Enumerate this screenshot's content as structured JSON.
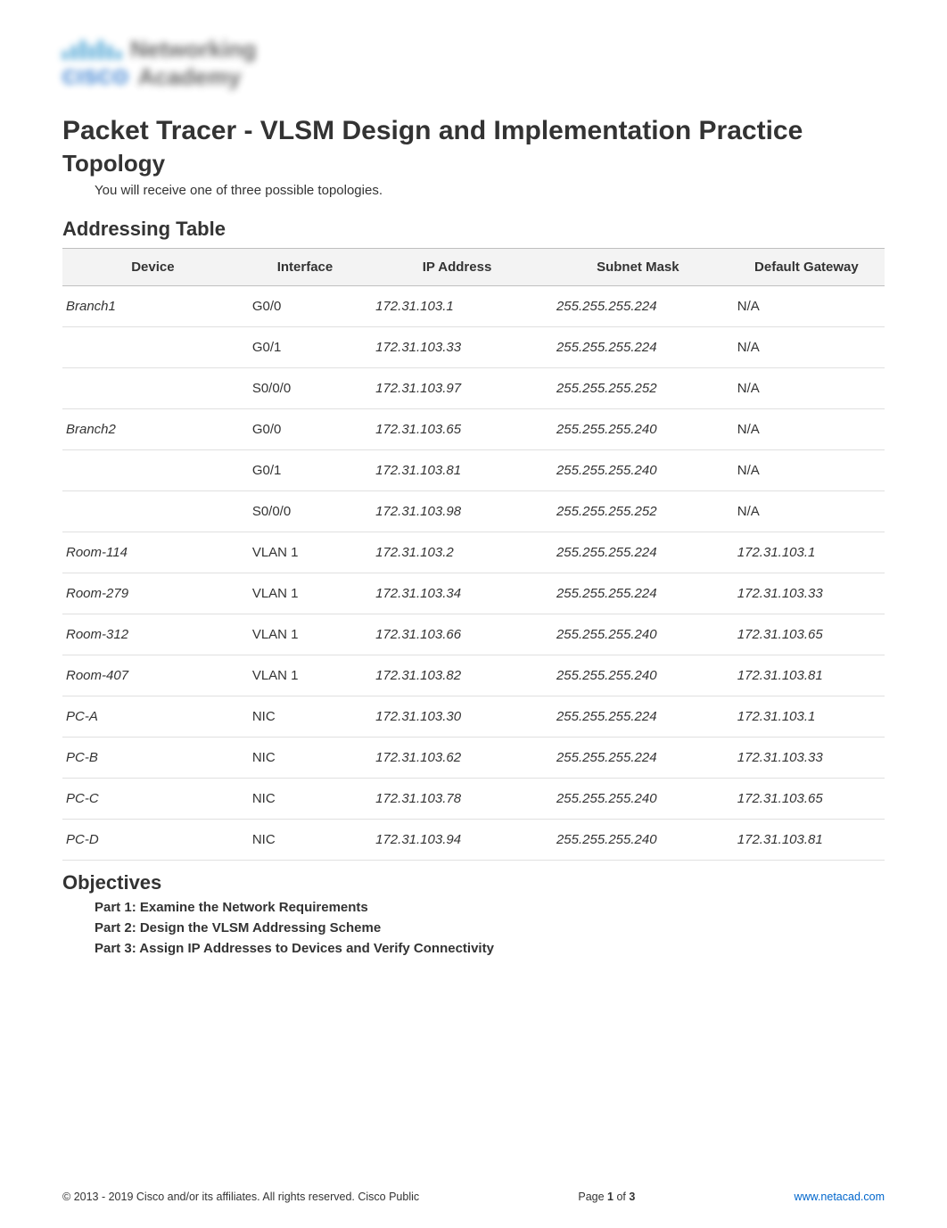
{
  "logo": {
    "word1": "Networking",
    "brand": "CISCO",
    "word2": "Academy"
  },
  "title_main": "Packet Tracer - VLSM Design and Implementation Practice",
  "topology": {
    "heading": "Topology",
    "note": "You will receive one of three possible topologies."
  },
  "addressing": {
    "heading": "Addressing Table",
    "columns": [
      "Device",
      "Interface",
      "IP Address",
      "Subnet Mask",
      "Default Gateway"
    ],
    "rows": [
      {
        "device": "Branch1",
        "iface": "G0/0",
        "ip": "172.31.103.1",
        "mask": "255.255.255.224",
        "gw": "N/A",
        "gw_italic": false
      },
      {
        "device": "",
        "iface": "G0/1",
        "ip": "172.31.103.33",
        "mask": "255.255.255.224",
        "gw": "N/A",
        "gw_italic": false
      },
      {
        "device": "",
        "iface": "S0/0/0",
        "ip": "172.31.103.97",
        "mask": "255.255.255.252",
        "gw": "N/A",
        "gw_italic": false
      },
      {
        "device": "Branch2",
        "iface": "G0/0",
        "ip": "172.31.103.65",
        "mask": "255.255.255.240",
        "gw": "N/A",
        "gw_italic": false
      },
      {
        "device": "",
        "iface": "G0/1",
        "ip": "172.31.103.81",
        "mask": "255.255.255.240",
        "gw": "N/A",
        "gw_italic": false
      },
      {
        "device": "",
        "iface": "S0/0/0",
        "ip": "172.31.103.98",
        "mask": "255.255.255.252",
        "gw": "N/A",
        "gw_italic": false
      },
      {
        "device": "Room-114",
        "iface": "VLAN 1",
        "ip": "172.31.103.2",
        "mask": "255.255.255.224",
        "gw": "172.31.103.1",
        "gw_italic": true
      },
      {
        "device": "Room-279",
        "iface": "VLAN 1",
        "ip": "172.31.103.34",
        "mask": "255.255.255.224",
        "gw": "172.31.103.33",
        "gw_italic": true
      },
      {
        "device": "Room-312",
        "iface": "VLAN 1",
        "ip": "172.31.103.66",
        "mask": "255.255.255.240",
        "gw": "172.31.103.65",
        "gw_italic": true
      },
      {
        "device": "Room-407",
        "iface": "VLAN 1",
        "ip": "172.31.103.82",
        "mask": "255.255.255.240",
        "gw": "172.31.103.81",
        "gw_italic": true
      },
      {
        "device": "PC-A",
        "iface": "NIC",
        "ip": "172.31.103.30",
        "mask": "255.255.255.224",
        "gw": "172.31.103.1",
        "gw_italic": true
      },
      {
        "device": "PC-B",
        "iface": "NIC",
        "ip": "172.31.103.62",
        "mask": "255.255.255.224",
        "gw": "172.31.103.33",
        "gw_italic": true
      },
      {
        "device": "PC-C",
        "iface": "NIC",
        "ip": "172.31.103.78",
        "mask": "255.255.255.240",
        "gw": "172.31.103.65",
        "gw_italic": true
      },
      {
        "device": "PC-D",
        "iface": "NIC",
        "ip": "172.31.103.94",
        "mask": "255.255.255.240",
        "gw": "172.31.103.81",
        "gw_italic": true
      }
    ]
  },
  "objectives": {
    "heading": "Objectives",
    "items": [
      "Part 1: Examine the Network Requirements",
      "Part 2: Design the VLSM Addressing Scheme",
      "Part 3: Assign IP Addresses to Devices and Verify Connectivity"
    ]
  },
  "footer": {
    "copyright": "2013 - 2019 Cisco and/or its affiliates. All rights reserved. Cisco Public",
    "page_prefix": "Page ",
    "page_current": "1",
    "page_of": " of ",
    "page_total": "3",
    "link": "www.netacad.com"
  },
  "colors": {
    "text": "#333333",
    "header_bg": "#f3f3f3",
    "row_border": "#e0e0e0",
    "link": "#0066cc",
    "logo_blue": "#4aa3d4"
  }
}
